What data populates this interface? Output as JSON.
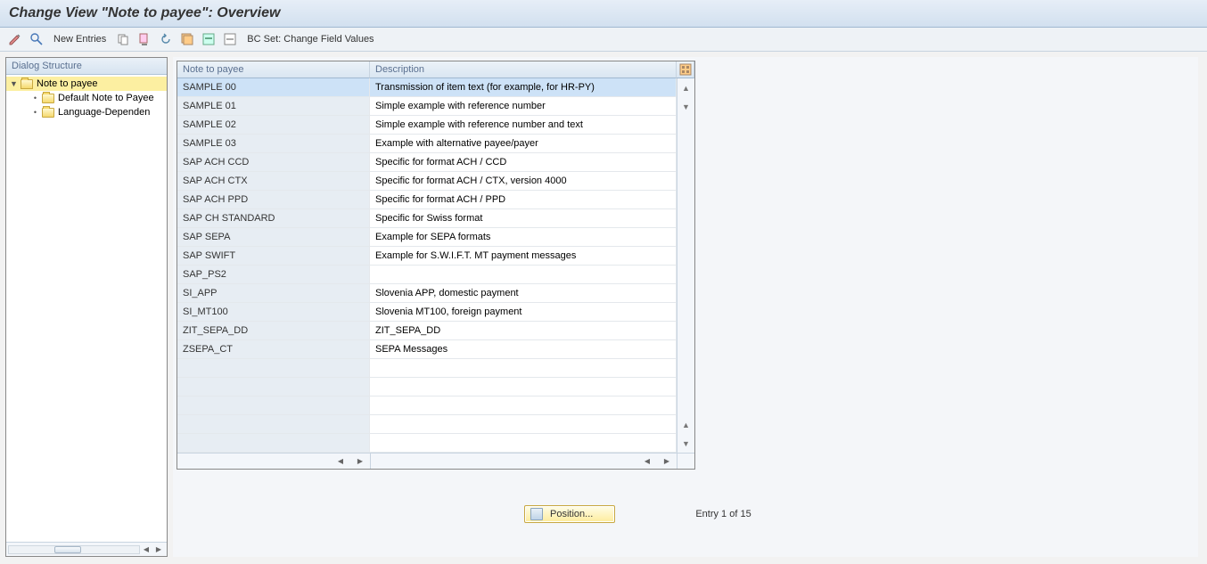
{
  "title": "Change View \"Note to payee\": Overview",
  "toolbar": {
    "new_entries_label": "New Entries",
    "bc_set_label": "BC Set: Change Field Values"
  },
  "tree": {
    "header": "Dialog Structure",
    "nodes": [
      {
        "label": "Note to payee",
        "level": 0,
        "selected": true,
        "folder": "open",
        "expanded": true
      },
      {
        "label": "Default Note to Payee",
        "level": 1,
        "selected": false,
        "folder": "closed"
      },
      {
        "label": "Language-Dependen",
        "level": 1,
        "selected": false,
        "folder": "closed"
      }
    ]
  },
  "table": {
    "columns": [
      "Note to payee",
      "Description"
    ],
    "rows": [
      {
        "key": "SAMPLE 00",
        "desc": "Transmission of item text (for example, for HR-PY)",
        "selected": true
      },
      {
        "key": "SAMPLE 01",
        "desc": "Simple example with reference number"
      },
      {
        "key": "SAMPLE 02",
        "desc": "Simple example with reference number and text"
      },
      {
        "key": "SAMPLE 03",
        "desc": "Example with alternative payee/payer"
      },
      {
        "key": "SAP ACH CCD",
        "desc": "Specific for format ACH / CCD"
      },
      {
        "key": "SAP ACH CTX",
        "desc": "Specific for format ACH / CTX, version 4000"
      },
      {
        "key": "SAP ACH PPD",
        "desc": "Specific for format ACH / PPD"
      },
      {
        "key": "SAP CH STANDARD",
        "desc": "Specific for Swiss format"
      },
      {
        "key": "SAP SEPA",
        "desc": "Example for SEPA formats"
      },
      {
        "key": "SAP SWIFT",
        "desc": "Example for S.W.I.F.T. MT payment messages"
      },
      {
        "key": "SAP_PS2",
        "desc": ""
      },
      {
        "key": "SI_APP",
        "desc": "Slovenia APP, domestic payment"
      },
      {
        "key": "SI_MT100",
        "desc": "Slovenia MT100, foreign payment"
      },
      {
        "key": "ZIT_SEPA_DD",
        "desc": "ZIT_SEPA_DD"
      },
      {
        "key": "ZSEPA_CT",
        "desc": "SEPA Messages"
      }
    ],
    "empty_rows": 5
  },
  "footer": {
    "position_label": "Position...",
    "entry_label": "Entry 1 of 15"
  },
  "colors": {
    "header_gradient_top": "#e6eef7",
    "header_gradient_bottom": "#d2e0ef",
    "toolbar_bg": "#eef2f6",
    "tree_selected_bg": "#fcefa1",
    "table_key_bg": "#e7edf3",
    "table_selected_bg": "#cde2f7",
    "scroll_bg": "#f3f6fa",
    "border_color": "#c8d4e0",
    "position_btn_top": "#fffde8",
    "position_btn_bottom": "#fdec9c"
  }
}
